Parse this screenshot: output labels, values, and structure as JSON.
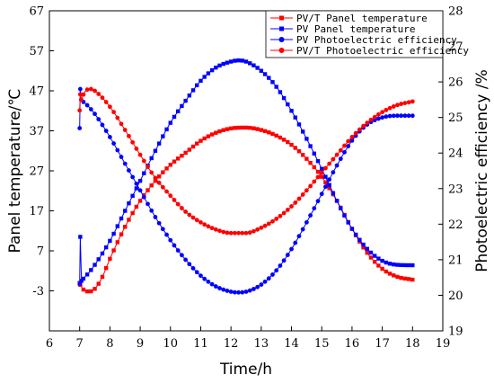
{
  "chart_data": {
    "type": "line",
    "xlabel": "Time/h",
    "ylabel_left": "Panel temperature/℃",
    "ylabel_right": "Photoelectric efficiency /%",
    "xlim": [
      6,
      19
    ],
    "ylim_left": [
      -13,
      67
    ],
    "ylim_right": [
      19,
      28
    ],
    "xticks": [
      "6",
      "7",
      "8",
      "9",
      "10",
      "11",
      "12",
      "13",
      "14",
      "15",
      "16",
      "17",
      "18",
      "19"
    ],
    "yticks_left": [
      "-3",
      "7",
      "17",
      "27",
      "37",
      "47",
      "57",
      "67"
    ],
    "yticks_right": [
      "19",
      "20",
      "21",
      "22",
      "23",
      "24",
      "25",
      "26",
      "27",
      "28"
    ],
    "legend_position": "top-right",
    "series": [
      {
        "name": "PV/T Panel temperature",
        "axis": "left",
        "color": "#ff0000",
        "marker": "square",
        "x": [
          7.0,
          7.02,
          7.1,
          7.2,
          7.3,
          7.5,
          7.75,
          8.0,
          8.5,
          9.0,
          9.5,
          10.0,
          10.5,
          11.0,
          11.5,
          12.0,
          12.5,
          13.0,
          13.5,
          14.0,
          14.5,
          15.0,
          15.5,
          16.0,
          16.5,
          17.0,
          17.5,
          18.0
        ],
        "y": [
          -1.0,
          -1.5,
          -2.5,
          -3.0,
          -3.2,
          -2.5,
          0.5,
          5.0,
          13.0,
          19.5,
          24.5,
          28.5,
          31.5,
          34.5,
          36.5,
          37.6,
          37.8,
          37.2,
          35.8,
          33.5,
          30.0,
          25.5,
          19.5,
          12.5,
          6.5,
          2.5,
          0.5,
          -0.2
        ]
      },
      {
        "name": "PV Panel temperature",
        "axis": "left",
        "color": "#0000ff",
        "marker": "square",
        "x": [
          7.0,
          7.02,
          7.06,
          7.15,
          7.3,
          7.5,
          8.0,
          8.5,
          9.0,
          9.5,
          10.0,
          10.5,
          11.0,
          11.5,
          12.0,
          12.25,
          12.5,
          13.0,
          13.5,
          14.0,
          14.5,
          15.0,
          15.5,
          16.0,
          16.5,
          17.0,
          17.5,
          18.0
        ],
        "y": [
          -1.2,
          10.5,
          -0.5,
          0.3,
          1.5,
          3.5,
          9.5,
          17.0,
          24.5,
          32.0,
          39.0,
          44.5,
          49.5,
          52.8,
          54.3,
          54.6,
          54.3,
          52.0,
          48.0,
          42.0,
          35.0,
          27.5,
          19.5,
          12.5,
          7.5,
          4.5,
          3.5,
          3.4
        ]
      },
      {
        "name": "PV Photoelectric efficiency",
        "axis": "right",
        "color": "#0000ff",
        "marker": "circle",
        "x": [
          7.0,
          7.02,
          7.05,
          7.1,
          7.3,
          7.5,
          8.0,
          8.5,
          9.0,
          9.5,
          10.0,
          10.5,
          11.0,
          11.5,
          12.0,
          12.25,
          12.5,
          13.0,
          13.5,
          14.0,
          14.5,
          15.0,
          15.5,
          16.0,
          16.5,
          17.0,
          17.5,
          18.0
        ],
        "y": [
          24.7,
          25.8,
          25.5,
          25.45,
          25.3,
          25.1,
          24.45,
          23.7,
          22.95,
          22.2,
          21.55,
          21.0,
          20.55,
          20.25,
          20.1,
          20.08,
          20.1,
          20.3,
          20.7,
          21.3,
          22.05,
          22.85,
          23.65,
          24.35,
          24.8,
          25.0,
          25.05,
          25.05
        ]
      },
      {
        "name": "PV/T Photoelectric efficiency",
        "axis": "right",
        "color": "#ff0000",
        "marker": "circle",
        "x": [
          7.0,
          7.02,
          7.05,
          7.1,
          7.2,
          7.35,
          7.5,
          8.0,
          8.5,
          9.0,
          9.5,
          10.0,
          10.5,
          11.0,
          11.5,
          12.0,
          12.5,
          13.0,
          13.5,
          14.0,
          14.5,
          15.0,
          15.5,
          16.0,
          16.5,
          17.0,
          17.5,
          18.0
        ],
        "y": [
          25.2,
          25.65,
          25.5,
          25.6,
          25.75,
          25.8,
          25.75,
          25.3,
          24.65,
          23.95,
          23.3,
          22.8,
          22.35,
          22.05,
          21.85,
          21.75,
          21.75,
          21.9,
          22.15,
          22.5,
          22.95,
          23.45,
          23.95,
          24.45,
          24.85,
          25.15,
          25.35,
          25.45
        ]
      }
    ]
  }
}
